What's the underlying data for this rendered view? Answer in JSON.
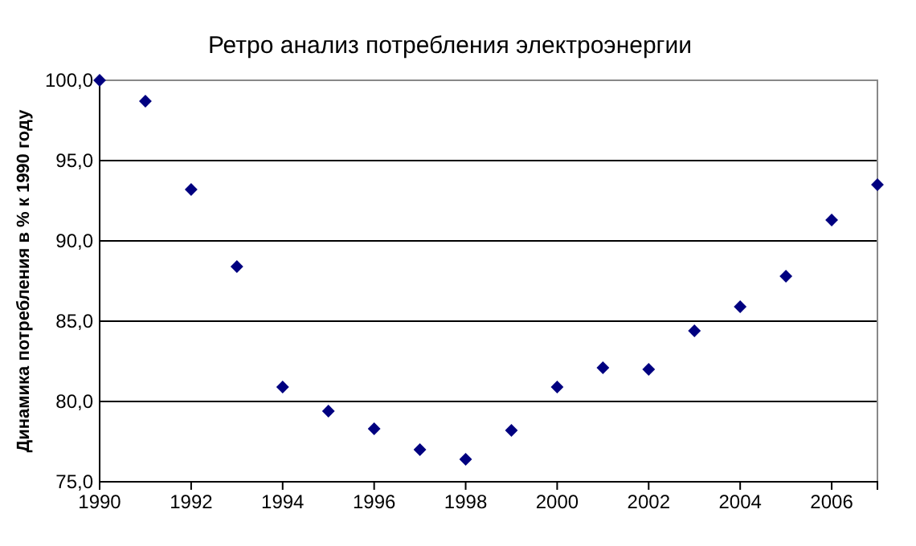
{
  "chart_data": {
    "type": "scatter",
    "title": "Ретро анализ потребления электроэнергии",
    "ylabel": "Динамика потребления в % к 1990 году",
    "x": [
      1990,
      1991,
      1992,
      1993,
      1994,
      1995,
      1996,
      1997,
      1998,
      1999,
      2000,
      2001,
      2002,
      2003,
      2004,
      2005,
      2006,
      2007
    ],
    "series": [
      {
        "color": "#000080",
        "values": [
          100.0,
          98.7,
          93.2,
          88.4,
          80.9,
          79.4,
          78.3,
          77.0,
          76.4,
          78.2,
          80.9,
          82.1,
          82.0,
          84.4,
          85.9,
          87.8,
          91.3,
          93.5
        ]
      }
    ],
    "xlim": [
      1990,
      2007
    ],
    "xticks": [
      1990,
      1992,
      1994,
      1996,
      1998,
      2000,
      2002,
      2004,
      2006
    ],
    "ylim": [
      75,
      100
    ],
    "yticks": [
      {
        "value": 75,
        "label": "75,0"
      },
      {
        "value": 80,
        "label": "80,0"
      },
      {
        "value": 85,
        "label": "85,0"
      },
      {
        "value": 90,
        "label": "90,0"
      },
      {
        "value": 95,
        "label": "95,0"
      },
      {
        "value": 100,
        "label": "100,0"
      }
    ],
    "grid": "y",
    "marker": "diamond"
  }
}
